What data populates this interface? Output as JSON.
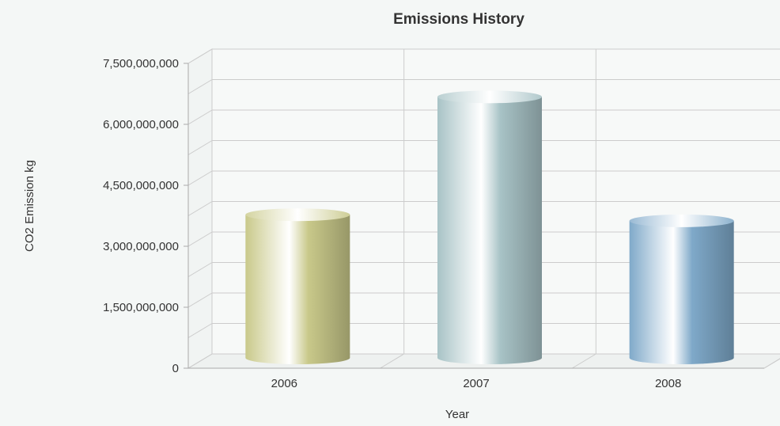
{
  "chart_data": {
    "type": "bar",
    "style": "3d-cylinder",
    "title": "Emissions History",
    "xlabel": "Year",
    "ylabel": "CO2 Emission kg",
    "categories": [
      "2006",
      "2007",
      "2008"
    ],
    "values": [
      3600000000,
      6500000000,
      3450000000
    ],
    "ylim": [
      0,
      7500000000
    ],
    "yticks": [
      0,
      1500000000,
      3000000000,
      4500000000,
      6000000000,
      7500000000
    ],
    "ytick_labels": [
      "0",
      "1,500,000,000",
      "3,000,000,000",
      "4,500,000,000",
      "6,000,000,000",
      "7,500,000,000"
    ],
    "grid": true,
    "legend": "none",
    "colors": {
      "2006": "#c9c98a",
      "2007": "#a8c3c6",
      "2008": "#7fa9c9",
      "grid": "#cccccc",
      "axis": "#aaaaaa",
      "background": "#f4f7f6"
    }
  }
}
